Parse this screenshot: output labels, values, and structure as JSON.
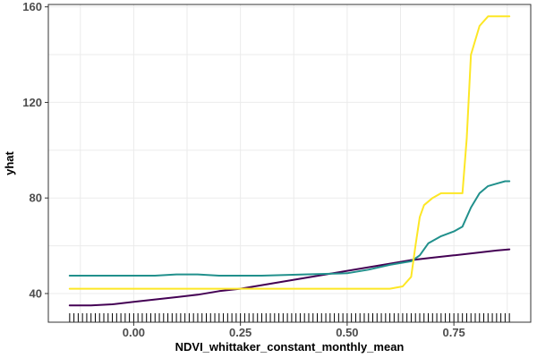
{
  "chart_data": {
    "type": "line",
    "xlabel": "NDVI_whittaker_constant_monthly_mean",
    "ylabel": "yhat",
    "xlim": [
      -0.2,
      0.93
    ],
    "ylim": [
      28,
      161
    ],
    "x_ticks": [
      0.0,
      0.25,
      0.5,
      0.75
    ],
    "x_tick_labels": [
      "0.00",
      "0.25",
      "0.50",
      "0.75"
    ],
    "y_ticks": [
      40,
      80,
      120,
      160
    ],
    "y_tick_labels": [
      "40",
      "80",
      "120",
      "160"
    ],
    "grid": true,
    "legend": "none",
    "colors": {
      "series_1": "#440154",
      "series_2": "#21908c",
      "series_3": "#fde725"
    },
    "series": [
      {
        "color": "#440154",
        "x": [
          -0.15,
          -0.1,
          -0.05,
          0.0,
          0.05,
          0.1,
          0.15,
          0.2,
          0.25,
          0.3,
          0.35,
          0.4,
          0.45,
          0.5,
          0.55,
          0.6,
          0.65,
          0.7,
          0.75,
          0.8,
          0.85,
          0.88
        ],
        "y": [
          35,
          35,
          35.5,
          36.5,
          37.5,
          38.5,
          39.5,
          41,
          42,
          43.5,
          45,
          46.5,
          48,
          49.5,
          51,
          52.5,
          54,
          55,
          56,
          57,
          58,
          58.5
        ]
      },
      {
        "color": "#21908c",
        "x": [
          -0.15,
          -0.05,
          0.0,
          0.05,
          0.1,
          0.15,
          0.2,
          0.3,
          0.4,
          0.5,
          0.55,
          0.6,
          0.65,
          0.67,
          0.69,
          0.72,
          0.75,
          0.77,
          0.79,
          0.81,
          0.83,
          0.85,
          0.87,
          0.88
        ],
        "y": [
          47.5,
          47.5,
          47.5,
          47.5,
          48,
          48,
          47.5,
          47.5,
          48,
          48.5,
          50,
          52,
          53.5,
          56,
          61,
          64,
          66,
          68,
          76,
          82,
          85,
          86,
          87,
          87
        ]
      },
      {
        "color": "#fde725",
        "x": [
          -0.15,
          -0.1,
          0.0,
          0.1,
          0.2,
          0.3,
          0.4,
          0.5,
          0.55,
          0.6,
          0.63,
          0.65,
          0.66,
          0.67,
          0.68,
          0.7,
          0.72,
          0.75,
          0.77,
          0.78,
          0.79,
          0.81,
          0.83,
          0.85,
          0.88
        ],
        "y": [
          42,
          42,
          42,
          42,
          42,
          42,
          42,
          42,
          42,
          42,
          43,
          47,
          60,
          72,
          77,
          80,
          82,
          82,
          82,
          105,
          140,
          152,
          156,
          156,
          156
        ]
      }
    ],
    "rug_x": [
      -0.15,
      -0.14,
      -0.13,
      -0.12,
      -0.11,
      -0.1,
      -0.09,
      -0.08,
      -0.07,
      -0.06,
      -0.05,
      -0.04,
      -0.03,
      -0.02,
      -0.01,
      0.0,
      0.01,
      0.02,
      0.03,
      0.04,
      0.05,
      0.06,
      0.07,
      0.08,
      0.09,
      0.1,
      0.11,
      0.12,
      0.13,
      0.14,
      0.15,
      0.16,
      0.17,
      0.18,
      0.19,
      0.2,
      0.21,
      0.22,
      0.23,
      0.24,
      0.25,
      0.26,
      0.27,
      0.28,
      0.29,
      0.3,
      0.31,
      0.32,
      0.33,
      0.34,
      0.35,
      0.36,
      0.37,
      0.38,
      0.39,
      0.4,
      0.41,
      0.42,
      0.43,
      0.44,
      0.45,
      0.46,
      0.47,
      0.48,
      0.49,
      0.5,
      0.51,
      0.52,
      0.53,
      0.54,
      0.55,
      0.56,
      0.57,
      0.58,
      0.59,
      0.6,
      0.61,
      0.62,
      0.63,
      0.64,
      0.65,
      0.66,
      0.67,
      0.68,
      0.69,
      0.7,
      0.71,
      0.72,
      0.73,
      0.74,
      0.75,
      0.76,
      0.77,
      0.78,
      0.79,
      0.8,
      0.81,
      0.82,
      0.83,
      0.84,
      0.85,
      0.86,
      0.87,
      0.88
    ]
  }
}
